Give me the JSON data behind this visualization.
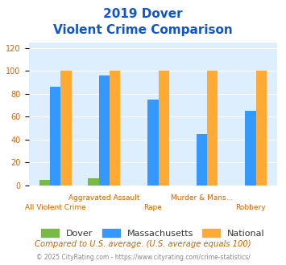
{
  "title_line1": "2019 Dover",
  "title_line2": "Violent Crime Comparison",
  "categories": [
    "All Violent Crime",
    "Aggravated Assault",
    "Rape",
    "Murder & Mans...",
    "Robbery"
  ],
  "series": {
    "Dover": [
      5,
      6,
      0,
      0,
      0
    ],
    "Massachusetts": [
      86,
      96,
      75,
      45,
      65
    ],
    "National": [
      100,
      100,
      100,
      100,
      100
    ]
  },
  "colors": {
    "Dover": "#77bb44",
    "Massachusetts": "#3399ff",
    "National": "#ffaa33"
  },
  "ylabel": "",
  "ylim": [
    0,
    125
  ],
  "yticks": [
    0,
    20,
    40,
    60,
    80,
    100,
    120
  ],
  "footnote1": "Compared to U.S. average. (U.S. average equals 100)",
  "footnote2": "© 2025 CityRating.com - https://www.cityrating.com/crime-statistics/",
  "bg_color": "#ddeeff",
  "title_color": "#1155cc",
  "footnote1_color": "#cc6600",
  "footnote2_color": "#888888",
  "tick_label_color": "#cc6600"
}
